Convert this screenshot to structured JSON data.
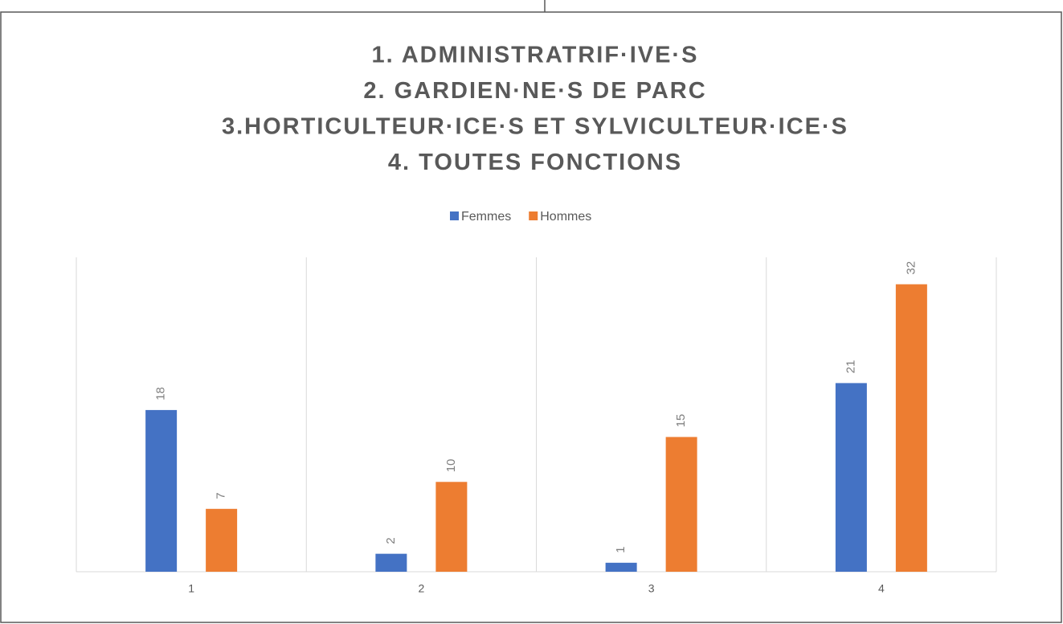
{
  "chart_data": {
    "type": "bar",
    "title": [
      "1. ADMINISTRATRIF·IVE·S",
      "2. GARDIEN·NE·S DE PARC",
      "3.HORTICULTEUR·ICE·S ET SYLVICULTEUR·ICE·S",
      "4. TOUTES FONCTIONS"
    ],
    "categories": [
      "1",
      "2",
      "3",
      "4"
    ],
    "series": [
      {
        "name": "Femmes",
        "color": "#4472c4",
        "values": [
          18,
          2,
          1,
          21
        ]
      },
      {
        "name": "Hommes",
        "color": "#ed7d31",
        "values": [
          7,
          10,
          15,
          32
        ]
      }
    ],
    "ylim": [
      0,
      35
    ],
    "legend": "top"
  }
}
